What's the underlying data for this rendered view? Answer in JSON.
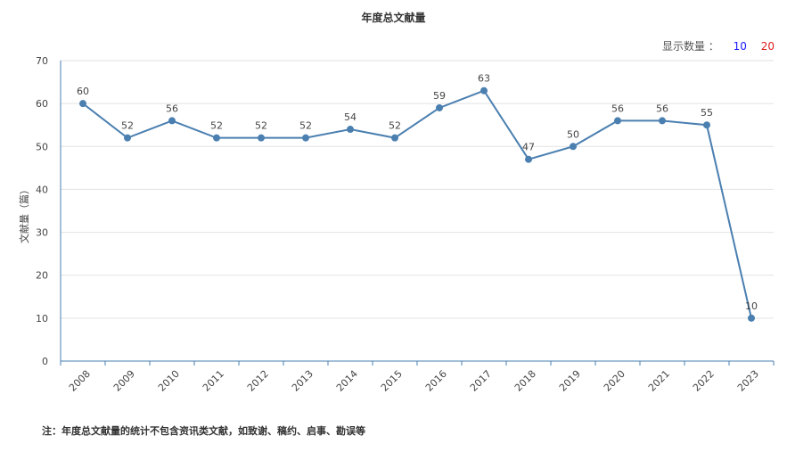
{
  "chart_data": {
    "type": "line",
    "title": "年度总文献量",
    "ylabel": "文献量（篇）",
    "xlabel": "",
    "ylim": [
      0,
      70
    ],
    "yticks": [
      0,
      10,
      20,
      30,
      40,
      50,
      60,
      70
    ],
    "grid": true,
    "line_color": "#4a7fb0",
    "x": [
      "2008",
      "2009",
      "2010",
      "2011",
      "2012",
      "2013",
      "2014",
      "2015",
      "2016",
      "2017",
      "2018",
      "2019",
      "2020",
      "2021",
      "2022",
      "2023"
    ],
    "values": [
      60,
      52,
      56,
      52,
      52,
      52,
      54,
      52,
      59,
      63,
      47,
      50,
      56,
      56,
      55,
      10
    ]
  },
  "display_count": {
    "label": "显示数量 ：",
    "options": [
      {
        "label": "10",
        "color": "#1a1aff"
      },
      {
        "label": "20",
        "color": "#e02020"
      }
    ]
  },
  "footnote": "注：年度总文献量的统计不包含资讯类文献，如致谢、稿约、启事、勘误等"
}
